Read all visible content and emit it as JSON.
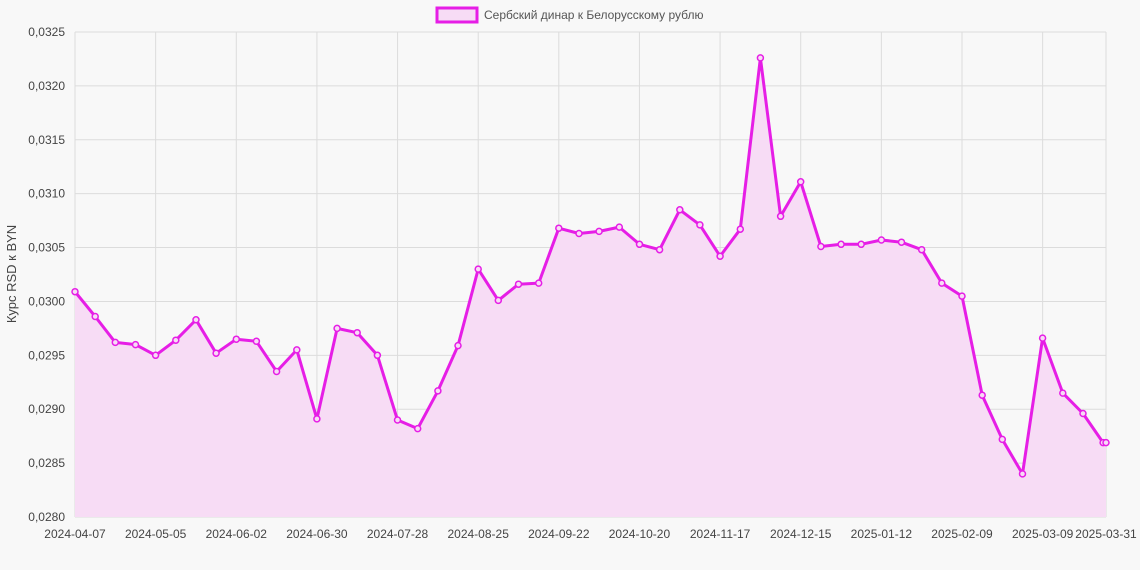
{
  "chart_data": {
    "type": "area",
    "ylabel": "Курс RSD к BYN",
    "ylim": [
      0.028,
      0.0325
    ],
    "y_ticks": [
      "0,0280",
      "0,0285",
      "0,0290",
      "0,0295",
      "0,0300",
      "0,0305",
      "0,0310",
      "0,0315",
      "0,0320",
      "0,0325"
    ],
    "x_tick_labels": [
      "2024-04-07",
      "2024-05-05",
      "2024-06-02",
      "2024-06-30",
      "2024-07-28",
      "2024-08-25",
      "2024-09-22",
      "2024-10-20",
      "2024-11-17",
      "2024-12-15",
      "2025-01-12",
      "2025-02-09",
      "2025-03-09",
      "2025-03-31"
    ],
    "legend_position": "top-center",
    "grid": true,
    "colors": {
      "line": "#e61ee6",
      "fill": "#f7dcf5",
      "grid": "#dcdcdc",
      "background": "#f8f8f8"
    },
    "series": [
      {
        "name": "Сербский динар к Белорусскому рублю",
        "x": [
          "2024-04-07",
          "2024-04-14",
          "2024-04-21",
          "2024-04-28",
          "2024-05-05",
          "2024-05-12",
          "2024-05-19",
          "2024-05-26",
          "2024-06-02",
          "2024-06-09",
          "2024-06-16",
          "2024-06-23",
          "2024-06-30",
          "2024-07-07",
          "2024-07-14",
          "2024-07-21",
          "2024-07-28",
          "2024-08-04",
          "2024-08-11",
          "2024-08-18",
          "2024-08-25",
          "2024-09-01",
          "2024-09-08",
          "2024-09-15",
          "2024-09-22",
          "2024-09-29",
          "2024-10-06",
          "2024-10-13",
          "2024-10-20",
          "2024-10-27",
          "2024-11-03",
          "2024-11-10",
          "2024-11-17",
          "2024-11-24",
          "2024-12-01",
          "2024-12-08",
          "2024-12-15",
          "2024-12-22",
          "2024-12-29",
          "2025-01-05",
          "2025-01-12",
          "2025-01-19",
          "2025-01-26",
          "2025-02-02",
          "2025-02-09",
          "2025-02-16",
          "2025-02-23",
          "2025-03-02",
          "2025-03-09",
          "2025-03-16",
          "2025-03-23",
          "2025-03-30",
          "2025-03-31"
        ],
        "values": [
          0.03009,
          0.02986,
          0.02962,
          0.0296,
          0.0295,
          0.02964,
          0.02983,
          0.02952,
          0.02965,
          0.02963,
          0.02935,
          0.02955,
          0.02891,
          0.02975,
          0.02971,
          0.0295,
          0.0289,
          0.02882,
          0.02917,
          0.02959,
          0.0303,
          0.03001,
          0.03016,
          0.03017,
          0.03068,
          0.03063,
          0.03065,
          0.03069,
          0.03053,
          0.03048,
          0.03085,
          0.03071,
          0.03042,
          0.03067,
          0.03226,
          0.03079,
          0.03111,
          0.03051,
          0.03053,
          0.03053,
          0.03057,
          0.03055,
          0.03048,
          0.03017,
          0.03005,
          0.02913,
          0.02872,
          0.0284,
          0.02966,
          0.02915,
          0.02896,
          0.02869,
          0.02869
        ]
      }
    ]
  }
}
